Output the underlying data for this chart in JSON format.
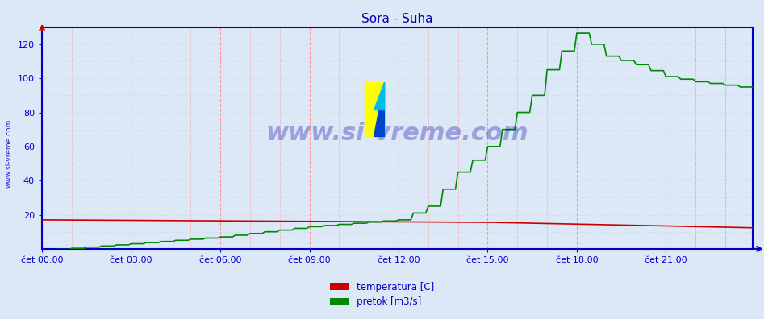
{
  "title": "Sora - Suha",
  "title_color": "#0000aa",
  "bg_color": "#dce8f5",
  "axis_color": "#0000cc",
  "tick_color": "#0000cc",
  "grid_color_major": "#ff9999",
  "grid_color_minor": "#c8d8e8",
  "xlim": [
    0,
    287
  ],
  "ylim": [
    0,
    130
  ],
  "yticks": [
    20,
    40,
    60,
    80,
    100,
    120
  ],
  "xtick_positions": [
    0,
    36,
    72,
    108,
    144,
    180,
    216,
    252
  ],
  "xtick_labels": [
    "čet 00:00",
    "čet 03:00",
    "čet 06:00",
    "čet 09:00",
    "čet 12:00",
    "čet 15:00",
    "čet 18:00",
    "čet 21:00"
  ],
  "temp_color": "#cc0000",
  "flow_color": "#008800",
  "watermark_text": "www.si-vreme.com",
  "watermark_color": "#0000aa",
  "watermark_alpha": 0.3,
  "left_label": "www.si-vreme.com",
  "legend_labels": [
    "temperatura [C]",
    "pretok [m3/s]"
  ],
  "legend_colors": [
    "#cc0000",
    "#008800"
  ],
  "minor_xtick_positions": [
    12,
    24,
    48,
    60,
    84,
    96,
    120,
    132,
    156,
    168,
    192,
    204,
    228,
    240,
    264,
    276
  ]
}
